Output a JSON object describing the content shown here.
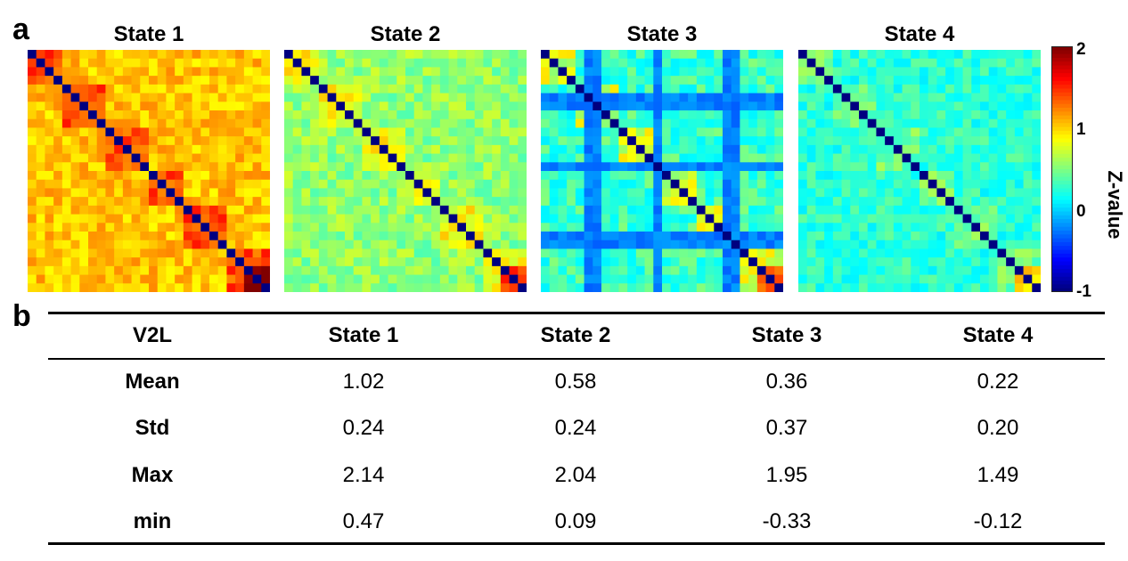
{
  "panel_labels": {
    "a": "a",
    "b": "b"
  },
  "chart_data": {
    "type": "heatmap",
    "description_note": "Four 28x28 symmetric connectivity matrices (z-values) with diagonal at -1",
    "states": [
      {
        "title": "State 1",
        "base": 1.05,
        "block_boost": 0.35,
        "noise": 0.18
      },
      {
        "title": "State 2",
        "base": 0.55,
        "block_boost": 0.3,
        "noise": 0.2
      },
      {
        "title": "State 3",
        "base": 0.3,
        "block_boost": 0.45,
        "noise": 0.22,
        "weak_nodes_value": -0.25
      },
      {
        "title": "State 4",
        "base": 0.25,
        "block_boost": 0.2,
        "noise": 0.18
      }
    ],
    "matrix_size": 28,
    "diagonal_value": -1,
    "colorbar": {
      "label": "Z-value",
      "min": -1,
      "max": 2,
      "ticks": [
        "2",
        "1",
        "0",
        "-1"
      ]
    },
    "colors": {
      "low": "#00008f",
      "high": "#800000"
    }
  },
  "table": {
    "headers": [
      "V2L",
      "State 1",
      "State 2",
      "State 3",
      "State 4"
    ],
    "rows": [
      {
        "label": "Mean",
        "values": [
          "1.02",
          "0.58",
          "0.36",
          "0.22"
        ]
      },
      {
        "label": "Std",
        "values": [
          "0.24",
          "0.24",
          "0.37",
          "0.20"
        ]
      },
      {
        "label": "Max",
        "values": [
          "2.14",
          "2.04",
          "1.95",
          "1.49"
        ]
      },
      {
        "label": "min",
        "values": [
          "0.47",
          "0.09",
          "-0.33",
          "-0.12"
        ]
      }
    ]
  }
}
